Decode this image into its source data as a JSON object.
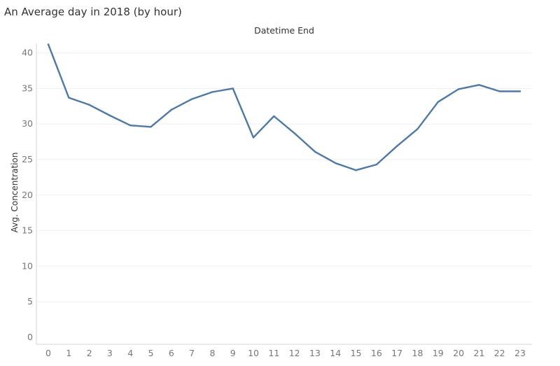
{
  "sheet": {
    "title": "An Average day in 2018 (by hour)",
    "column_header": "Datetime End"
  },
  "chart_data": {
    "type": "line",
    "title": "An Average day in 2018 (by hour)",
    "xlabel": "Datetime End",
    "ylabel": "Avg. Concentration",
    "categories": [
      "0",
      "1",
      "2",
      "3",
      "4",
      "5",
      "6",
      "7",
      "8",
      "9",
      "10",
      "11",
      "12",
      "13",
      "14",
      "15",
      "16",
      "17",
      "18",
      "19",
      "20",
      "21",
      "22",
      "23"
    ],
    "series": [
      {
        "values": [
          41.2,
          33.7,
          32.7,
          31.2,
          29.8,
          29.6,
          32.0,
          33.5,
          34.5,
          35.0,
          28.1,
          31.1,
          28.7,
          26.1,
          24.5,
          23.5,
          24.3,
          26.9,
          29.3,
          33.1,
          34.9,
          35.5,
          34.6,
          34.6
        ],
        "color": "#4e79a7"
      }
    ],
    "yticks": [
      0,
      5,
      10,
      15,
      20,
      25,
      30,
      35,
      40
    ],
    "ylim": [
      0,
      42.5
    ],
    "grid": true,
    "colors": {
      "line": "#4e79a7",
      "grid": "#efefef",
      "axis": "#d4d4d4",
      "tick_text": "#777777"
    }
  }
}
